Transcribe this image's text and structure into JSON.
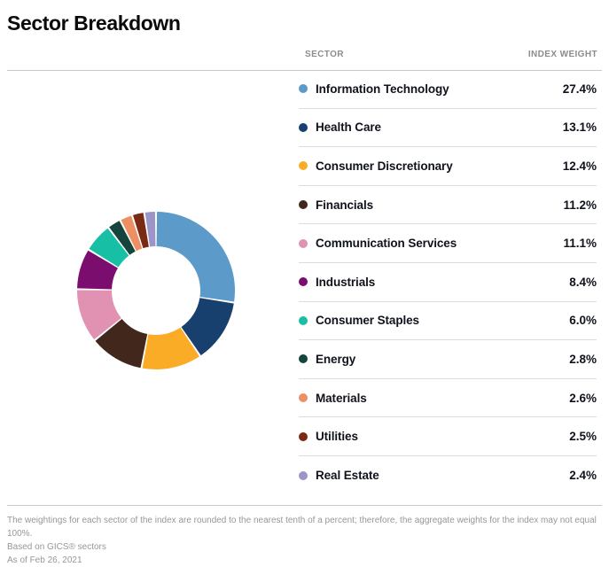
{
  "page": {
    "title": "Sector Breakdown",
    "table_headers": {
      "sector": "SECTOR",
      "index_weight": "INDEX WEIGHT"
    },
    "footnotes": [
      "The weightings for each sector of the index are rounded to the nearest tenth of a percent; therefore, the aggregate weights for the index may not equal 100%.",
      "Based on GICS® sectors",
      "As of Feb 26, 2021"
    ]
  },
  "chart_data": {
    "type": "pie",
    "subtype": "donut",
    "title": "Sector Breakdown",
    "legend_position": "right",
    "start_angle_deg": 0,
    "direction": "clockwise",
    "unit": "%",
    "categories": [
      "Information Technology",
      "Health Care",
      "Consumer Discretionary",
      "Financials",
      "Communication Services",
      "Industrials",
      "Consumer Staples",
      "Energy",
      "Materials",
      "Utilities",
      "Real Estate"
    ],
    "values": [
      27.4,
      13.1,
      12.4,
      11.2,
      11.1,
      8.4,
      6.0,
      2.8,
      2.6,
      2.5,
      2.4
    ],
    "value_labels": [
      "27.4%",
      "13.1%",
      "12.4%",
      "11.2%",
      "11.1%",
      "8.4%",
      "6.0%",
      "2.8%",
      "2.6%",
      "2.5%",
      "2.4%"
    ],
    "colors": [
      "#5b9ac9",
      "#17406f",
      "#fbac26",
      "#42281c",
      "#e192b2",
      "#7b0d6e",
      "#17bfa4",
      "#15443c",
      "#ec8f63",
      "#7a2a12",
      "#9d94c7"
    ]
  }
}
